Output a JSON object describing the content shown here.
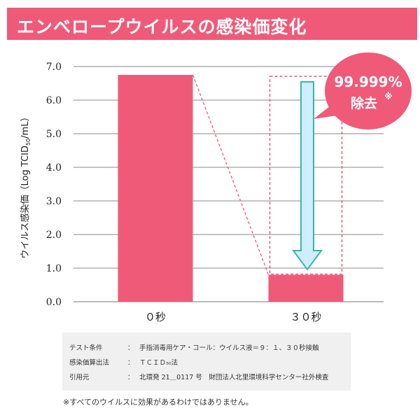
{
  "title": "エンベロープウイルスの感染価変化",
  "chart_data": {
    "type": "bar",
    "categories": [
      "０秒",
      "３０秒"
    ],
    "values": [
      6.75,
      0.8
    ],
    "ylabel": "ウイルス感染価（Log TCID50/mL）",
    "ylabel_main": "ウイルス感染価（Log TCID",
    "ylabel_sub": "50",
    "ylabel_tail": "/mL）",
    "ylim": [
      0,
      7
    ],
    "yticks": [
      "0.0",
      "1.0",
      "2.0",
      "3.0",
      "4.0",
      "5.0",
      "6.0",
      "7.0"
    ],
    "grid": true,
    "bar_color": "#ef5a78",
    "annotation": {
      "line1": "99.999%",
      "line2": "除去",
      "mark": "※",
      "color": "#ef5a78",
      "arrow_fill": "#cdeefa",
      "arrow_stroke": "#3bb5a8"
    }
  },
  "conditions": [
    {
      "key": "テスト条件",
      "sep": "：",
      "value": "手指消毒用ケア・コール：ウイルス液＝９：１、３０秒接触"
    },
    {
      "key": "感染価算出法",
      "sep": "：",
      "value": "ＴＣＩＤ₅₀法"
    },
    {
      "key": "引用元",
      "sep": "：",
      "value": "北環発 21＿0117 号　財団法人北里環境科学センター社外検査"
    }
  ],
  "note": "※すべてのウイルスに効果があるわけではありません。",
  "colors": {
    "accent": "#ef5a78",
    "grid": "#8a8a8a",
    "condition_bg": "#f0f0f0"
  }
}
